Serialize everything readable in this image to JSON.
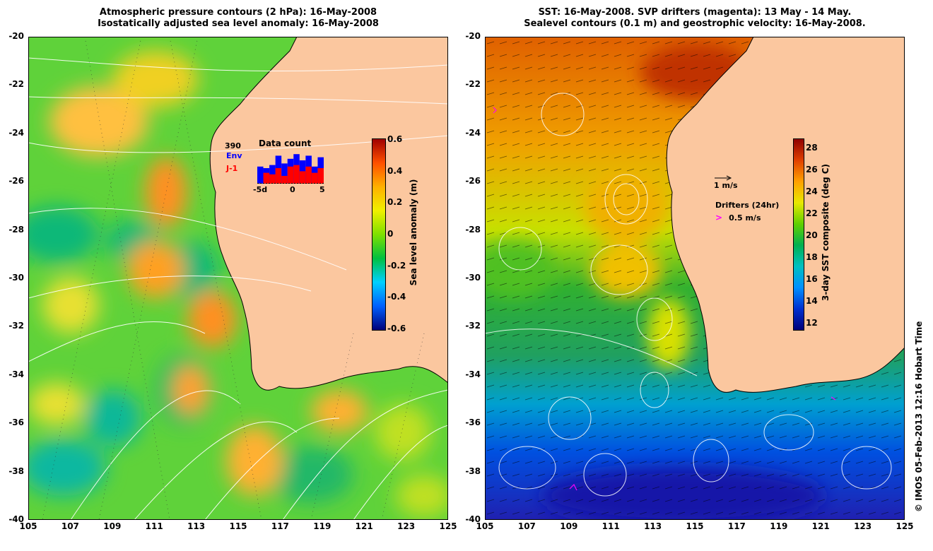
{
  "left_panel": {
    "title_line1": "Atmospheric pressure contours (2 hPa): 16-May-2008",
    "title_line2": "Isostatically adjusted sea level anomaly: 16-May-2008",
    "colorbar": {
      "label": "Sea level anomaly (m)",
      "ticks": [
        "0.6",
        "0.4",
        "0.2",
        "0",
        "-0.2",
        "-0.4",
        "-0.6"
      ],
      "range": [
        -0.6,
        0.6
      ],
      "colormap": [
        "#00007a",
        "#0060ff",
        "#00d0ff",
        "#00c040",
        "#7ee000",
        "#f0f000",
        "#ffb000",
        "#ff5000",
        "#a00000"
      ]
    },
    "data_count": {
      "title": "Data count",
      "count_label": "390",
      "series": [
        {
          "name": "Env",
          "color": "#0000ff",
          "values": [
            0.55,
            0.5,
            0.6,
            0.9,
            0.65,
            0.8,
            0.95,
            0.75,
            0.9,
            0.55,
            0.85
          ]
        },
        {
          "name": "J-1",
          "color": "#ff0000",
          "values": [
            0.0,
            0.35,
            0.3,
            0.5,
            0.25,
            0.55,
            0.6,
            0.4,
            0.55,
            0.35,
            0.5
          ]
        }
      ],
      "x_ticks": [
        "-5d",
        "0",
        "5"
      ]
    }
  },
  "right_panel": {
    "title_line1": "SST: 16-May-2008. SVP drifters (magenta): 13 May - 14 May.",
    "title_line2": "Sealevel contours (0.1 m) and geostrophic velocity: 16-May-2008.",
    "colorbar": {
      "label": "3-day SST composite (deg C)",
      "ticks": [
        "28",
        "26",
        "24",
        "22",
        "20",
        "18",
        "16",
        "14",
        "12"
      ],
      "range": [
        11,
        29
      ],
      "colormap": [
        "#00007a",
        "#0030d0",
        "#0090ff",
        "#00c0c0",
        "#00b050",
        "#60d000",
        "#e8e800",
        "#ffa000",
        "#e04000",
        "#900000"
      ]
    },
    "velocity_scale": "1 m/s",
    "drifter_legend": {
      "title": "Drifters (24hr)",
      "symbol": ">",
      "label": "0.5 m/s"
    }
  },
  "axes": {
    "y_ticks": [
      "-20",
      "-22",
      "-24",
      "-26",
      "-28",
      "-30",
      "-32",
      "-34",
      "-36",
      "-38",
      "-40"
    ],
    "x_ticks": [
      "105",
      "107",
      "109",
      "111",
      "113",
      "115",
      "117",
      "119",
      "121",
      "123",
      "125"
    ],
    "lon_range": [
      105,
      125
    ],
    "lat_range": [
      -40,
      -20
    ]
  },
  "credit": "© IMOS 05-Feb-2013 12:16 Hobart Time",
  "colors": {
    "land": "#fbc79f",
    "contour": "#ffffff",
    "coast": "#000000",
    "drifter": "#ff00ff"
  }
}
